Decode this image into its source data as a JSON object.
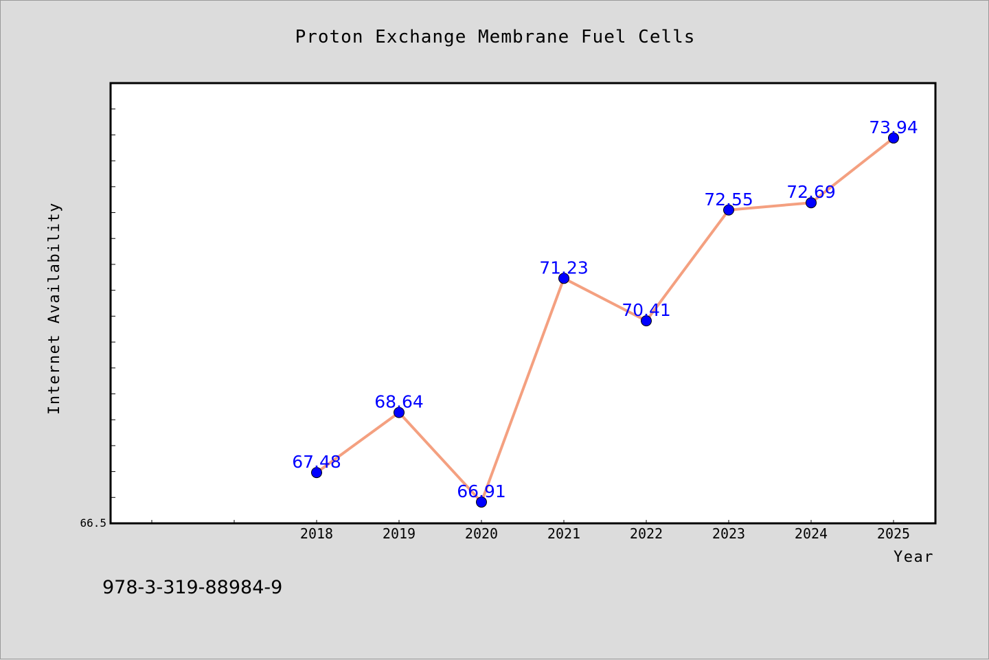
{
  "chart_data": {
    "type": "line",
    "title": "Proton Exchange Membrane Fuel Cells",
    "xlabel": "Year",
    "ylabel": "Internet Availability",
    "categories": [
      "2018",
      "2019",
      "2020",
      "2021",
      "2022",
      "2023",
      "2024",
      "2025"
    ],
    "values": [
      67.48,
      68.64,
      66.91,
      71.23,
      70.41,
      72.55,
      72.69,
      73.94
    ],
    "data_labels": [
      "67.48",
      "68.64",
      "66.91",
      "71.23",
      "70.41",
      "72.55",
      "72.69",
      "73.94"
    ],
    "y_tick_label": "66.5",
    "ylim": [
      66.5,
      75.0
    ],
    "grid": false,
    "legend": "none",
    "colors": {
      "line": "#f4a080",
      "marker": "#0000ff",
      "data_label": "#0000ff",
      "plot_background": "#ffffff",
      "figure_background": "#dcdcdc"
    }
  },
  "footer_text": "978-3-319-88984-9"
}
